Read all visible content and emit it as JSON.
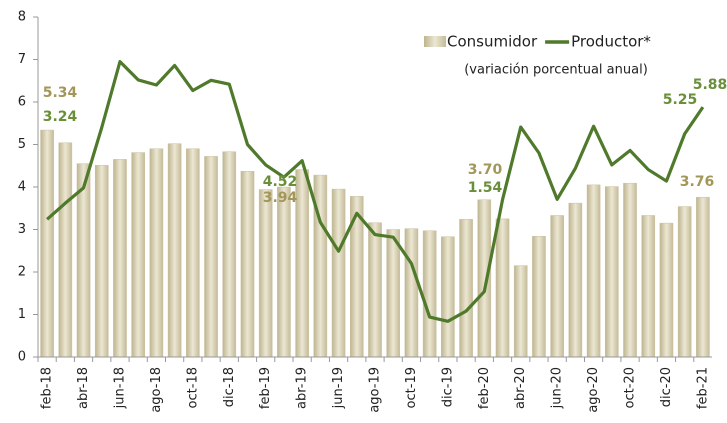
{
  "chart_data": {
    "type": "bar-line",
    "legend_note": "(variación porcentual anual)",
    "categories": [
      "feb-18",
      null,
      "abr-18",
      null,
      "jun-18",
      null,
      "ago-18",
      null,
      "oct-18",
      null,
      "dic-18",
      null,
      "feb-19",
      null,
      "abr-19",
      null,
      "jun-19",
      null,
      "ago-19",
      null,
      "oct-19",
      null,
      "dic-19",
      null,
      "feb-20",
      null,
      "abr-20",
      null,
      "jun-20",
      null,
      "ago-20",
      null,
      "oct-20",
      null,
      "dic-20",
      null,
      "feb-21"
    ],
    "series": [
      {
        "name": "Consumidor",
        "type": "bar",
        "color": "#d6cfb3",
        "label_color": "#a39659",
        "values": [
          5.34,
          5.04,
          4.55,
          4.51,
          4.65,
          4.81,
          4.9,
          5.02,
          4.9,
          4.72,
          4.83,
          4.37,
          3.94,
          4.0,
          4.41,
          4.28,
          3.95,
          3.78,
          3.16,
          3.0,
          3.02,
          2.97,
          2.83,
          3.24,
          3.7,
          3.25,
          2.15,
          2.84,
          3.33,
          3.62,
          4.05,
          4.01,
          4.09,
          3.33,
          3.15,
          3.54,
          3.76
        ],
        "value_labels": [
          "5.34",
          null,
          null,
          null,
          null,
          null,
          null,
          null,
          null,
          null,
          null,
          null,
          "3.94",
          null,
          null,
          null,
          null,
          null,
          null,
          null,
          null,
          null,
          null,
          null,
          "3.70",
          null,
          null,
          null,
          null,
          null,
          null,
          null,
          null,
          null,
          null,
          null,
          "3.76"
        ]
      },
      {
        "name": "Productor*",
        "type": "line",
        "color": "#4f7a2b",
        "label_color": "#6a8f3a",
        "values": [
          3.24,
          3.62,
          3.98,
          5.4,
          6.95,
          6.52,
          6.4,
          6.86,
          6.27,
          6.51,
          6.42,
          5.0,
          4.52,
          4.23,
          4.62,
          3.17,
          2.49,
          3.38,
          2.88,
          2.82,
          2.2,
          0.94,
          0.84,
          1.08,
          1.54,
          3.7,
          5.41,
          4.8,
          3.71,
          4.44,
          5.43,
          4.52,
          4.86,
          4.41,
          4.14,
          5.25,
          5.88
        ],
        "value_labels": [
          "3.24",
          null,
          null,
          null,
          null,
          null,
          null,
          null,
          null,
          null,
          null,
          null,
          "4.52",
          null,
          null,
          null,
          null,
          null,
          null,
          null,
          null,
          null,
          null,
          null,
          "1.54",
          null,
          null,
          null,
          null,
          null,
          null,
          null,
          null,
          null,
          null,
          "5.25",
          "5.88"
        ]
      }
    ],
    "ylim": [
      0,
      8
    ],
    "yticks": [
      0,
      1,
      2,
      3,
      4,
      5,
      6,
      7,
      8
    ],
    "grid": false
  }
}
